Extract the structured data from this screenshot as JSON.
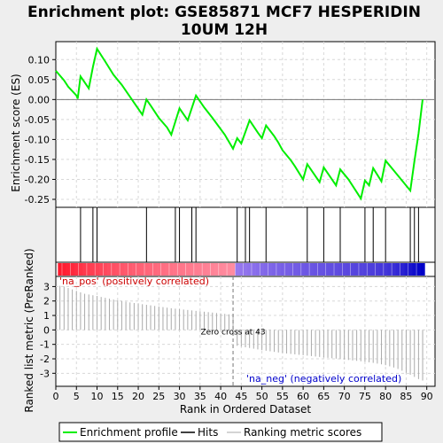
{
  "title_line1": "Enrichment plot: GSE85871 MCF7 HESPERIDIN",
  "title_line2": "10UM 12H",
  "colors": {
    "curve": "#00ee00",
    "hits": "#000000",
    "metric": "#aaaaaa",
    "pos_label": "#cc0000",
    "neg_label": "#0000cc",
    "grid": "#d8d8d8"
  },
  "chart_data": {
    "type": "line",
    "es_panel": {
      "ylabel": "Enrichment score (ES)",
      "ylim": [
        -0.27,
        0.145
      ],
      "yticks": [
        0.1,
        0.05,
        0.0,
        -0.05,
        -0.1,
        -0.15,
        -0.2,
        -0.25
      ],
      "ytick_labels": [
        "0.10",
        "0.05",
        "0.00",
        "-0.05",
        "-0.10",
        "-0.15",
        "-0.20",
        "-0.25"
      ],
      "points": [
        [
          0,
          0.072
        ],
        [
          2,
          0.048
        ],
        [
          3,
          0.032
        ],
        [
          5,
          0.01
        ],
        [
          5.3,
          0.002
        ],
        [
          6,
          0.058
        ],
        [
          8,
          0.028
        ],
        [
          9,
          0.082
        ],
        [
          10,
          0.127
        ],
        [
          12,
          0.095
        ],
        [
          14,
          0.062
        ],
        [
          16,
          0.037
        ],
        [
          18,
          0.007
        ],
        [
          21,
          -0.038
        ],
        [
          22,
          0.0
        ],
        [
          23,
          -0.015
        ],
        [
          25,
          -0.046
        ],
        [
          27,
          -0.07
        ],
        [
          28,
          -0.088
        ],
        [
          30,
          -0.022
        ],
        [
          32,
          -0.052
        ],
        [
          34,
          0.01
        ],
        [
          36,
          -0.02
        ],
        [
          38,
          -0.046
        ],
        [
          41,
          -0.088
        ],
        [
          43,
          -0.123
        ],
        [
          44,
          -0.097
        ],
        [
          45,
          -0.11
        ],
        [
          47,
          -0.052
        ],
        [
          49,
          -0.083
        ],
        [
          50,
          -0.097
        ],
        [
          51,
          -0.065
        ],
        [
          53,
          -0.092
        ],
        [
          54,
          -0.108
        ],
        [
          55,
          -0.127
        ],
        [
          57,
          -0.152
        ],
        [
          58,
          -0.167
        ],
        [
          60,
          -0.2
        ],
        [
          61,
          -0.162
        ],
        [
          64,
          -0.207
        ],
        [
          65,
          -0.17
        ],
        [
          68,
          -0.215
        ],
        [
          69,
          -0.175
        ],
        [
          71,
          -0.2
        ],
        [
          74,
          -0.248
        ],
        [
          75,
          -0.203
        ],
        [
          76,
          -0.215
        ],
        [
          77,
          -0.172
        ],
        [
          79,
          -0.205
        ],
        [
          80,
          -0.153
        ],
        [
          82,
          -0.178
        ],
        [
          86,
          -0.228
        ],
        [
          87,
          -0.155
        ],
        [
          88,
          -0.085
        ],
        [
          89,
          0.0
        ]
      ]
    },
    "hits": [
      6,
      9,
      10,
      22,
      29,
      30,
      33,
      34,
      44,
      46,
      47,
      51,
      61,
      65,
      69,
      75,
      77,
      80,
      86,
      87,
      88
    ],
    "ranked_metric": {
      "ylabel": "Ranked list metric (PreRanked)",
      "xlabel": "Rank in Ordered Dataset",
      "ylim": [
        -3.9,
        3.7
      ],
      "yticks": [
        3,
        2,
        1,
        0,
        -1,
        -2,
        -3
      ],
      "ytick_labels": [
        "3",
        "2",
        "1",
        "0",
        "-1",
        "-2",
        "-3"
      ],
      "values": [
        3.05,
        3.0,
        2.9,
        2.8,
        2.7,
        2.6,
        2.5,
        2.45,
        2.4,
        2.35,
        2.28,
        2.22,
        2.16,
        2.1,
        2.05,
        2.0,
        1.95,
        1.9,
        1.86,
        1.82,
        1.78,
        1.74,
        1.7,
        1.66,
        1.62,
        1.58,
        1.54,
        1.5,
        1.47,
        1.44,
        1.41,
        1.38,
        1.35,
        1.32,
        1.29,
        1.26,
        1.23,
        1.2,
        1.17,
        1.14,
        1.11,
        1.08,
        1.05,
        -1.1,
        -1.15,
        -1.2,
        -1.25,
        -1.3,
        -1.35,
        -1.4,
        -1.44,
        -1.48,
        -1.52,
        -1.56,
        -1.6,
        -1.63,
        -1.66,
        -1.69,
        -1.72,
        -1.75,
        -1.78,
        -1.81,
        -1.84,
        -1.87,
        -1.9,
        -1.93,
        -1.96,
        -1.99,
        -2.02,
        -2.05,
        -2.08,
        -2.11,
        -2.14,
        -2.17,
        -2.2,
        -2.24,
        -2.28,
        -2.33,
        -2.38,
        -2.44,
        -2.52,
        -2.6,
        -2.7,
        -2.82,
        -2.96,
        -3.1,
        -3.25,
        -3.4,
        -3.5
      ],
      "zero_cross_label": "Zero cross at 43",
      "zero_cross_rank": 43,
      "pos_label": "'na_pos' (positively correlated)",
      "neg_label": "'na_neg' (negatively correlated)"
    },
    "xlim": [
      0,
      92
    ],
    "xticks": [
      0,
      5,
      10,
      15,
      20,
      25,
      30,
      35,
      40,
      45,
      50,
      55,
      60,
      65,
      70,
      75,
      80,
      85,
      90
    ],
    "xtick_labels": [
      "0",
      "5",
      "10",
      "15",
      "20",
      "25",
      "30",
      "35",
      "40",
      "45",
      "50",
      "55",
      "60",
      "65",
      "70",
      "75",
      "80",
      "85",
      "90"
    ]
  },
  "legend": {
    "items": [
      {
        "label": "Enrichment profile"
      },
      {
        "label": "Hits"
      },
      {
        "label": "Ranking metric scores"
      }
    ]
  }
}
